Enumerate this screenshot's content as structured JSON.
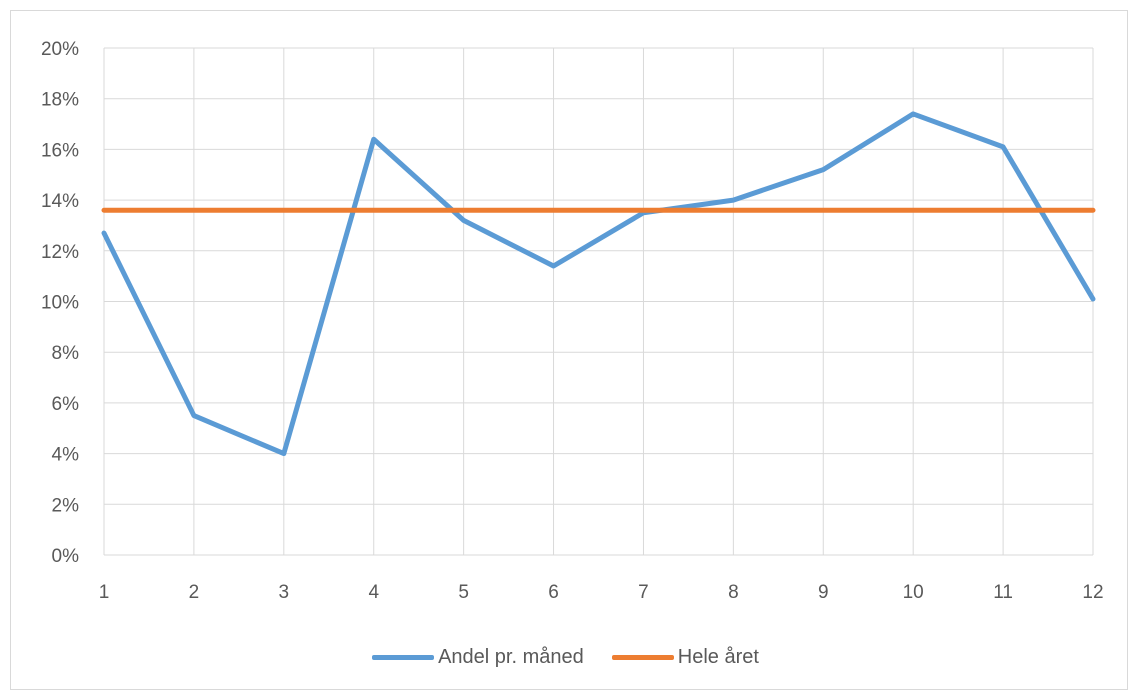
{
  "chart_data": {
    "type": "line",
    "title": "",
    "xlabel": "",
    "ylabel": "",
    "x": [
      1,
      2,
      3,
      4,
      5,
      6,
      7,
      8,
      9,
      10,
      11,
      12
    ],
    "x_tick_labels": [
      "1",
      "2",
      "3",
      "4",
      "5",
      "6",
      "7",
      "8",
      "9",
      "10",
      "11",
      "12"
    ],
    "y_tick_labels": [
      "0%",
      "2%",
      "4%",
      "6%",
      "8%",
      "10%",
      "12%",
      "14%",
      "16%",
      "18%",
      "20%"
    ],
    "ylim": [
      0,
      0.2
    ],
    "y_format": "percent",
    "grid": true,
    "legend_position": "bottom",
    "series": [
      {
        "name": "Andel pr. måned",
        "color": "#5b9bd5",
        "values": [
          0.127,
          0.055,
          0.04,
          0.164,
          0.132,
          0.114,
          0.135,
          0.14,
          0.152,
          0.174,
          0.161,
          0.101
        ]
      },
      {
        "name": "Hele året",
        "color": "#ed7d31",
        "values": [
          0.136,
          0.136,
          0.136,
          0.136,
          0.136,
          0.136,
          0.136,
          0.136,
          0.136,
          0.136,
          0.136,
          0.136
        ]
      }
    ]
  }
}
